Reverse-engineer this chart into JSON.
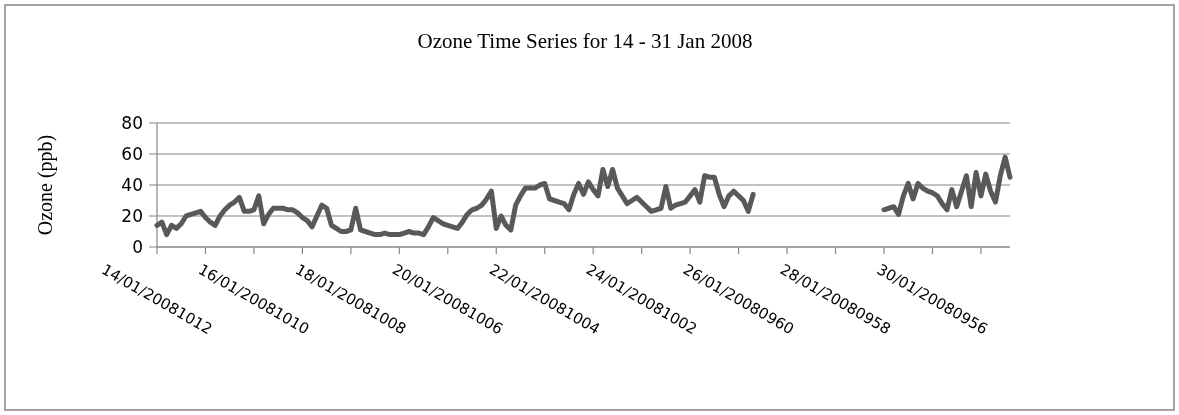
{
  "chart_data": {
    "type": "line",
    "title": "Ozone Time Series for 14 - 31 Jan 2008",
    "ylabel": "Ozone (ppb)",
    "categories": [
      "14/01/20081012",
      null,
      null,
      null,
      null,
      null,
      null,
      null,
      null,
      null,
      null,
      null,
      null,
      null,
      null,
      null,
      null,
      null,
      null,
      null,
      "16/01/20081010",
      null,
      null,
      null,
      null,
      null,
      null,
      null,
      null,
      null,
      null,
      null,
      null,
      null,
      null,
      null,
      null,
      null,
      null,
      null,
      "18/01/20081008",
      null,
      null,
      null,
      null,
      null,
      null,
      null,
      null,
      null,
      null,
      null,
      null,
      null,
      null,
      null,
      null,
      null,
      null,
      null,
      "20/01/20081006",
      null,
      null,
      null,
      null,
      null,
      null,
      null,
      null,
      null,
      null,
      null,
      null,
      null,
      null,
      null,
      null,
      null,
      null,
      null,
      "22/01/20081004",
      null,
      null,
      null,
      null,
      null,
      null,
      null,
      null,
      null,
      null,
      null,
      null,
      null,
      null,
      null,
      null,
      null,
      null,
      null,
      "24/01/20081002",
      null,
      null,
      null,
      null,
      null,
      null,
      null,
      null,
      null,
      null,
      null,
      null,
      null,
      null,
      null,
      null,
      null,
      null,
      null,
      "26/01/20080960",
      null,
      null,
      null,
      null,
      null,
      null,
      null,
      null,
      null,
      null,
      null,
      null,
      null,
      null,
      null,
      null,
      null,
      null,
      null,
      "28/01/20080958",
      null,
      null,
      null,
      null,
      null,
      null,
      null,
      null,
      null,
      null,
      null,
      null,
      null,
      null,
      null,
      null,
      null,
      null,
      null,
      "30/01/20080956",
      null,
      null,
      null,
      null,
      null,
      null,
      null,
      null,
      null,
      null,
      null,
      null,
      null,
      null,
      null,
      null
    ],
    "series": [
      {
        "color": "#595959",
        "values": [
          14,
          16,
          8,
          14,
          12,
          15,
          20,
          21,
          22,
          23,
          19,
          16,
          14,
          20,
          24,
          27,
          29,
          32,
          23,
          23,
          24,
          33,
          15,
          21,
          25,
          25,
          25,
          24,
          24,
          22,
          19,
          17,
          13,
          20,
          27,
          25,
          14,
          12,
          10,
          10,
          11,
          25,
          11,
          10,
          9,
          8,
          8,
          9,
          8,
          8,
          8,
          9,
          10,
          9,
          9,
          8,
          13,
          19,
          17,
          15,
          14,
          13,
          12,
          16,
          21,
          24,
          25,
          27,
          31,
          36,
          12,
          20,
          14,
          11,
          27,
          33,
          38,
          38,
          38,
          40,
          41,
          31,
          30,
          29,
          28,
          24,
          34,
          41,
          34,
          42,
          37,
          33,
          50,
          39,
          50,
          38,
          33,
          28,
          30,
          32,
          29,
          26,
          23,
          24,
          25,
          39,
          25,
          27,
          28,
          29,
          33,
          37,
          29,
          46,
          45,
          45,
          34,
          26,
          33,
          36,
          33,
          30,
          23,
          34,
          null,
          null,
          null,
          null,
          null,
          null,
          null,
          null,
          null,
          null,
          null,
          null,
          null,
          null,
          null,
          null,
          null,
          null,
          null,
          null,
          null,
          null,
          null,
          null,
          null,
          null,
          24,
          25,
          26,
          21,
          33,
          41,
          31,
          41,
          38,
          36,
          35,
          33,
          28,
          24,
          37,
          26,
          36,
          46,
          26,
          48,
          33,
          47,
          36,
          29,
          46,
          58,
          45
        ]
      }
    ],
    "ylim": [
      0,
      80
    ],
    "yticks": [
      0,
      20,
      40,
      60,
      80
    ],
    "grid": "y",
    "marker": "none",
    "line_style": "solid"
  }
}
